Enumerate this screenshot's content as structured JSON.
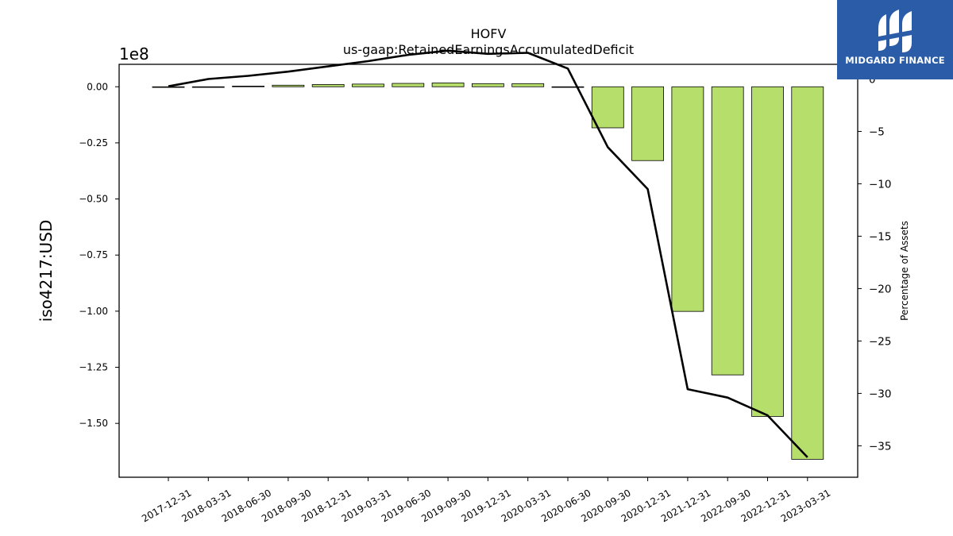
{
  "brand": {
    "name": "MIDGARD FINANCE",
    "color": "#2b5ca8",
    "icon": "midgard-logo-icon"
  },
  "chart_data": {
    "type": "bar",
    "title": "HOFV",
    "subtitle": "us-gaap:RetainedEarningsAccumulatedDeficit",
    "ylabel": "iso4217:USD",
    "y_multiplier": "1e8",
    "y2label": "Percentage of Assets",
    "categories": [
      "2017-12-31",
      "2018-03-31",
      "2018-06-30",
      "2018-09-30",
      "2018-12-31",
      "2019-03-31",
      "2019-06-30",
      "2019-09-30",
      "2019-12-31",
      "2020-03-31",
      "2020-06-30",
      "2020-09-30",
      "2020-12-31",
      "2021-12-31",
      "2022-09-30",
      "2022-12-31",
      "2023-03-31"
    ],
    "series": [
      {
        "type": "bar",
        "axis": "left",
        "color": "#b5de6a",
        "values": [
          -0.003,
          -0.002,
          0.003,
          0.007,
          0.01,
          0.012,
          0.015,
          0.017,
          0.014,
          0.014,
          -0.001,
          -0.183,
          -0.329,
          -1.001,
          -1.284,
          -1.469,
          -1.66
        ]
      },
      {
        "type": "line",
        "axis": "right",
        "color": "#000000",
        "values": [
          -0.7,
          0.0,
          0.3,
          0.7,
          1.2,
          1.7,
          2.3,
          2.7,
          2.4,
          2.5,
          1.0,
          -6.5,
          -10.5,
          -29.6,
          -30.4,
          -32.1,
          -36.1
        ]
      }
    ],
    "ylim": [
      -1.74,
      0.1
    ],
    "yticks": [
      0.0,
      -0.25,
      -0.5,
      -0.75,
      -1.0,
      -1.25,
      -1.5
    ],
    "ytick_labels": [
      "0.00",
      "−0.25",
      "−0.50",
      "−0.75",
      "−1.00",
      "−1.25",
      "−1.50"
    ],
    "y2lim": [
      -38.0,
      1.4
    ],
    "y2ticks": [
      0,
      -5,
      -10,
      -15,
      -20,
      -25,
      -30,
      -35
    ],
    "y2tick_labels": [
      "0",
      "−5",
      "−10",
      "−15",
      "−20",
      "−25",
      "−30",
      "−35"
    ],
    "grid": false,
    "legend": "none"
  }
}
